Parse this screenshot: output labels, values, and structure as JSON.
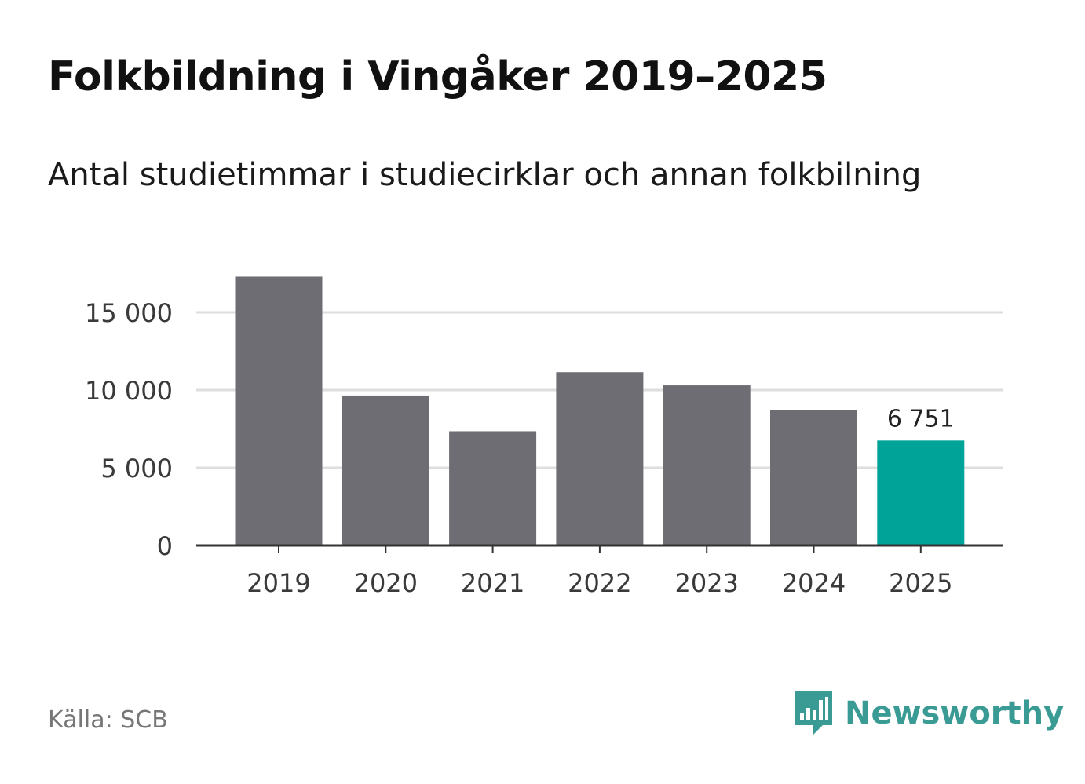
{
  "title": "Folkbildning i Vingåker 2019–2025",
  "subtitle": "Antal studietimmar i studiecirklar och annan folkbilning",
  "source": "Källa: SCB",
  "brand": {
    "name": "Newsworthy",
    "icon": "newsworthy-logo-icon",
    "color": "#3a9a94"
  },
  "colors": {
    "bar": "#6e6d73",
    "highlight": "#00a398",
    "grid": "#dedede",
    "axis": "#333333"
  },
  "chart_data": {
    "type": "bar",
    "categories": [
      "2019",
      "2020",
      "2021",
      "2022",
      "2023",
      "2024",
      "2025"
    ],
    "values": [
      17300,
      9650,
      7350,
      11150,
      10300,
      8700,
      6751
    ],
    "highlight_index": 6,
    "data_labels": [
      {
        "index": 6,
        "text": "6 751"
      }
    ],
    "yticks": [
      0,
      5000,
      10000,
      15000
    ],
    "ytick_labels": [
      "0",
      "5 000",
      "10 000",
      "15 000"
    ],
    "ylim": [
      0,
      17300
    ],
    "xlabel": "",
    "ylabel": "",
    "grid": true
  }
}
